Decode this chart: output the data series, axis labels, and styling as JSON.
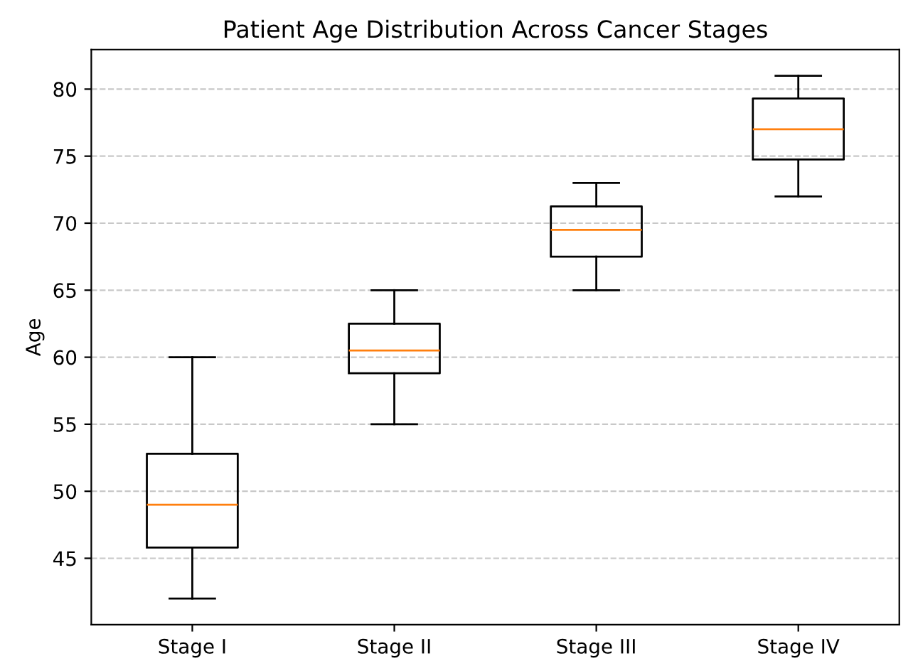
{
  "chart_data": {
    "type": "box",
    "title": "Patient Age Distribution Across Cancer Stages",
    "ylabel": "Age",
    "categories": [
      "Stage I",
      "Stage II",
      "Stage III",
      "Stage IV"
    ],
    "boxes": [
      {
        "low": 42,
        "q1": 45.8,
        "median": 49,
        "q3": 52.8,
        "high": 60
      },
      {
        "low": 55,
        "q1": 58.8,
        "median": 60.5,
        "q3": 62.5,
        "high": 65
      },
      {
        "low": 65,
        "q1": 67.5,
        "median": 69.5,
        "q3": 71.25,
        "high": 73
      },
      {
        "low": 72,
        "q1": 74.75,
        "median": 77,
        "q3": 79.3,
        "high": 81
      }
    ],
    "color": "#000000",
    "ylim": [
      40.05,
      82.95
    ],
    "yticks": [
      45,
      50,
      55,
      60,
      65,
      70,
      75,
      80
    ],
    "grid": "y"
  }
}
